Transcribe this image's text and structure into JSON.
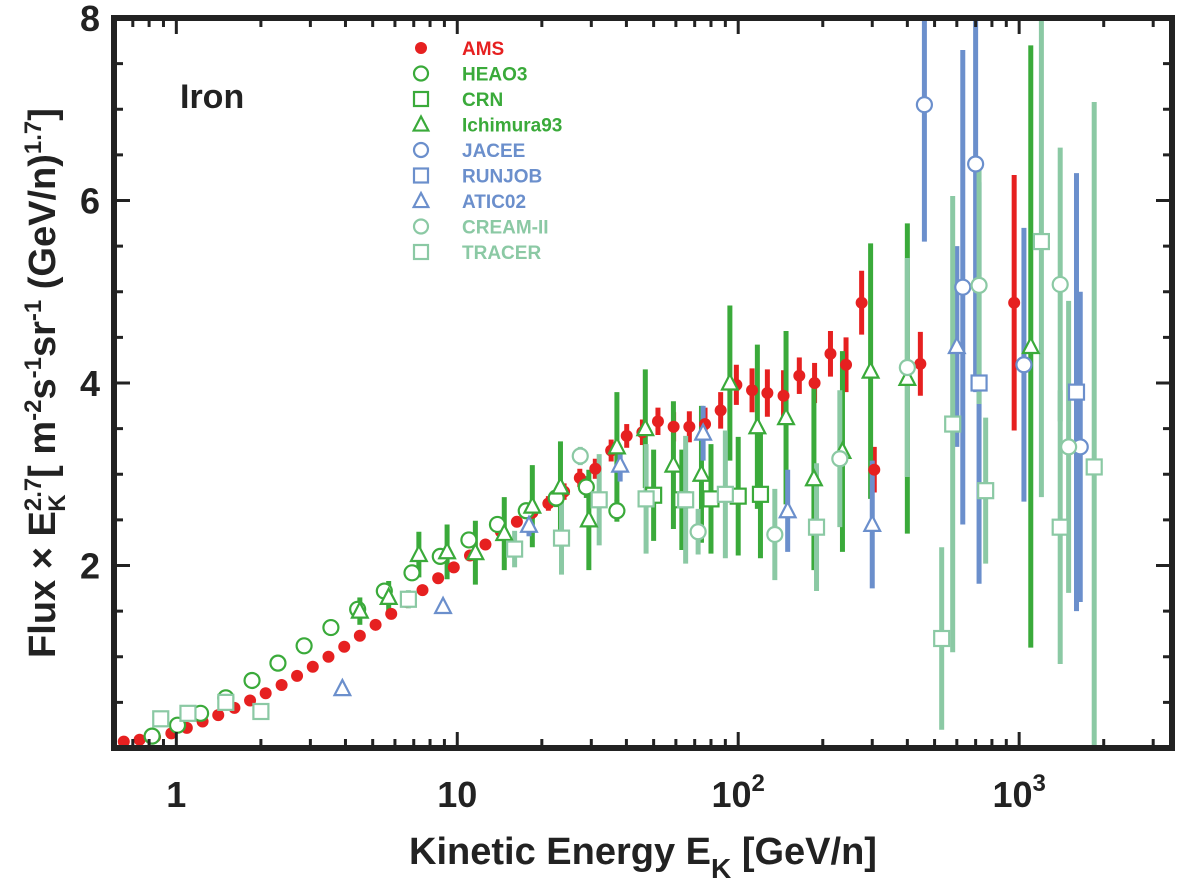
{
  "chart_data": {
    "type": "scatter",
    "panel_label": "Iron",
    "xlabel": {
      "main": "Kinetic Energy E",
      "sub": "K",
      "tail": " [GeV/n]"
    },
    "ylabel": "Flux × E_K^2.7 [ m^-2 s^-1 sr^-1 (GeV/n)^1.7 ]",
    "xscale": "log",
    "xlim": [
      0.6,
      3500
    ],
    "ylim": [
      0,
      8
    ],
    "grid": false,
    "legend_position": "top-center",
    "x_ticks": [
      {
        "value": 1,
        "base": "1",
        "exp": ""
      },
      {
        "value": 10,
        "base": "10",
        "exp": ""
      },
      {
        "value": 100,
        "base": "10",
        "exp": "2"
      },
      {
        "value": 1000,
        "base": "10",
        "exp": "3"
      }
    ],
    "y_ticks": [
      {
        "value": 2,
        "label": "2"
      },
      {
        "value": 4,
        "label": "4"
      },
      {
        "value": 6,
        "label": "6"
      },
      {
        "value": 8,
        "label": "8"
      }
    ],
    "series": [
      {
        "name": "AMS",
        "color": "#e62020",
        "marker": "dot",
        "points": [
          [
            0.65,
            0.07
          ],
          [
            0.74,
            0.09
          ],
          [
            0.84,
            0.12
          ],
          [
            0.96,
            0.16
          ],
          [
            1.09,
            0.22
          ],
          [
            1.24,
            0.29
          ],
          [
            1.41,
            0.36
          ],
          [
            1.61,
            0.44
          ],
          [
            1.83,
            0.52
          ],
          [
            2.08,
            0.6
          ],
          [
            2.37,
            0.69
          ],
          [
            2.69,
            0.79
          ],
          [
            3.06,
            0.89
          ],
          [
            3.48,
            1.0
          ],
          [
            3.96,
            1.11
          ],
          [
            4.5,
            1.23
          ],
          [
            5.12,
            1.35
          ],
          [
            5.82,
            1.47
          ],
          [
            6.61,
            1.6
          ],
          [
            7.52,
            1.73
          ],
          [
            8.55,
            1.86
          ],
          [
            9.72,
            1.98
          ],
          [
            11.1,
            2.11
          ],
          [
            12.6,
            2.23
          ],
          [
            14.3,
            2.37
          ],
          [
            16.3,
            2.48
          ],
          [
            18.5,
            2.58
          ],
          [
            21.1,
            2.68
          ],
          [
            24.0,
            2.81
          ],
          [
            27.3,
            2.96
          ],
          [
            31.0,
            3.06
          ],
          [
            35.3,
            3.26
          ],
          [
            40.1,
            3.42
          ],
          [
            45.6,
            3.46
          ],
          [
            51.8,
            3.58
          ],
          [
            58.9,
            3.52
          ],
          [
            67.0,
            3.52
          ],
          [
            76.2,
            3.55
          ],
          [
            86.6,
            3.7
          ],
          [
            98.5,
            3.98
          ],
          [
            112,
            3.92
          ],
          [
            127,
            3.89
          ],
          [
            145,
            3.86
          ],
          [
            165,
            4.08
          ],
          [
            187,
            4.0
          ],
          [
            213,
            4.32
          ],
          [
            242,
            4.2
          ],
          [
            275,
            4.88
          ],
          [
            305,
            3.05
          ],
          [
            445,
            4.21
          ],
          [
            960,
            4.88
          ]
        ],
        "errors": [
          0,
          0,
          0,
          0,
          0,
          0,
          0,
          0,
          0,
          0,
          0,
          0,
          0,
          0,
          0,
          0,
          0,
          0,
          0,
          0,
          0,
          0,
          0,
          0,
          0,
          0.06,
          0.07,
          0.08,
          0.09,
          0.1,
          0.11,
          0.12,
          0.13,
          0.14,
          0.15,
          0.16,
          0.17,
          0.18,
          0.2,
          0.22,
          0.24,
          0.26,
          0.28,
          0.2,
          0.22,
          0.25,
          0.3,
          0.35,
          0.25,
          0.35,
          1.4
        ]
      },
      {
        "name": "HEAO3",
        "color": "#3aaa3a",
        "marker": "circle",
        "points": [
          [
            0.82,
            0.13
          ],
          [
            1.01,
            0.25
          ],
          [
            1.22,
            0.38
          ],
          [
            1.5,
            0.55
          ],
          [
            1.86,
            0.74
          ],
          [
            2.3,
            0.93
          ],
          [
            2.85,
            1.12
          ],
          [
            3.55,
            1.32
          ],
          [
            4.42,
            1.52
          ],
          [
            5.5,
            1.72
          ],
          [
            6.9,
            1.92
          ],
          [
            8.7,
            2.1
          ],
          [
            11.0,
            2.28
          ],
          [
            13.9,
            2.45
          ],
          [
            17.6,
            2.6
          ],
          [
            22.5,
            2.74
          ],
          [
            28.8,
            2.86
          ],
          [
            37.0,
            2.6
          ]
        ],
        "errors": [
          0,
          0,
          0,
          0,
          0,
          0,
          0,
          0,
          0,
          0,
          0,
          0,
          0.05,
          0.06,
          0.08,
          0.1,
          0.12,
          0.12
        ]
      },
      {
        "name": "CRN",
        "color": "#3aaa3a",
        "marker": "square",
        "points": [
          [
            50,
            2.77
          ],
          [
            63,
            2.72
          ],
          [
            80,
            2.73
          ],
          [
            100,
            2.76
          ],
          [
            120,
            2.78
          ]
        ],
        "errors": [
          0.5,
          0.55,
          0.6,
          0.65,
          0.7
        ]
      },
      {
        "name": "Ichimura93",
        "color": "#3aaa3a",
        "marker": "triangle",
        "points": [
          [
            4.5,
            1.5
          ],
          [
            5.7,
            1.65
          ],
          [
            7.3,
            2.12
          ],
          [
            9.2,
            2.15
          ],
          [
            11.6,
            2.14
          ],
          [
            14.7,
            2.35
          ],
          [
            18.5,
            2.65
          ],
          [
            23.3,
            2.86
          ],
          [
            29.4,
            2.5
          ],
          [
            37.0,
            3.3
          ],
          [
            46.7,
            3.5
          ],
          [
            58.8,
            3.1
          ],
          [
            74,
            3.0
          ],
          [
            93.4,
            4.0
          ],
          [
            117,
            3.52
          ],
          [
            148,
            3.62
          ],
          [
            186,
            2.95
          ],
          [
            235,
            3.25
          ],
          [
            296,
            4.13
          ],
          [
            400,
            4.05
          ],
          [
            1100,
            4.4
          ]
        ],
        "errors": [
          0.15,
          0.18,
          0.25,
          0.3,
          0.35,
          0.4,
          0.45,
          0.5,
          0.55,
          0.6,
          0.65,
          0.7,
          0.75,
          0.85,
          0.9,
          0.95,
          1.0,
          1.1,
          1.4,
          1.7,
          3.3
        ]
      },
      {
        "name": "JACEE",
        "color": "#6b8fcc",
        "marker": "circle",
        "points": [
          [
            460,
            7.05
          ],
          [
            630,
            5.05
          ],
          [
            700,
            6.4
          ],
          [
            1040,
            4.2
          ],
          [
            1650,
            3.3
          ]
        ],
        "errors": [
          1.5,
          2.6,
          2.5,
          1.5,
          1.7
        ]
      },
      {
        "name": "RUNJOB",
        "color": "#6b8fcc",
        "marker": "square",
        "points": [
          [
            720,
            4.0
          ],
          [
            1600,
            3.9
          ]
        ],
        "errors": [
          2.2,
          2.4
        ]
      },
      {
        "name": "ATIC02",
        "color": "#6b8fcc",
        "marker": "triangle",
        "points": [
          [
            3.9,
            0.65
          ],
          [
            8.9,
            1.55
          ],
          [
            18.0,
            2.44
          ],
          [
            38.0,
            3.1
          ],
          [
            75,
            3.45
          ],
          [
            150,
            2.6
          ],
          [
            300,
            2.45
          ],
          [
            600,
            4.4
          ]
        ],
        "errors": [
          0,
          0,
          0.12,
          0.18,
          0.3,
          0.45,
          0.7,
          1.1
        ]
      },
      {
        "name": "CREAM-II",
        "color": "#8bc9a4",
        "marker": "circle",
        "points": [
          [
            27.4,
            3.2
          ],
          [
            72,
            2.37
          ],
          [
            135,
            2.34
          ],
          [
            230,
            3.17
          ],
          [
            400,
            4.17
          ],
          [
            720,
            5.07
          ],
          [
            1400,
            5.08
          ],
          [
            1500,
            3.3
          ]
        ],
        "errors": [
          0.1,
          0.25,
          0.5,
          0.75,
          1.2,
          1.3,
          1.5,
          1.6
        ]
      },
      {
        "name": "TRACER",
        "color": "#8bc9a4",
        "marker": "square",
        "points": [
          [
            0.88,
            0.32
          ],
          [
            1.1,
            0.38
          ],
          [
            1.5,
            0.5
          ],
          [
            2.0,
            0.4
          ],
          [
            6.7,
            1.63
          ],
          [
            16.0,
            2.18
          ],
          [
            23.5,
            2.3
          ],
          [
            32,
            2.72
          ],
          [
            47,
            2.73
          ],
          [
            65,
            2.72
          ],
          [
            90,
            2.78
          ],
          [
            190,
            2.42
          ],
          [
            530,
            1.2
          ],
          [
            580,
            3.55
          ],
          [
            760,
            2.82
          ],
          [
            1200,
            5.55
          ],
          [
            1400,
            2.42
          ],
          [
            1850,
            3.08
          ]
        ],
        "errors": [
          0,
          0,
          0,
          0,
          0.1,
          0.2,
          0.4,
          0.5,
          0.6,
          0.7,
          0.7,
          0.7,
          1.0,
          2.5,
          0.8,
          2.8,
          1.5,
          4.0
        ]
      }
    ]
  }
}
